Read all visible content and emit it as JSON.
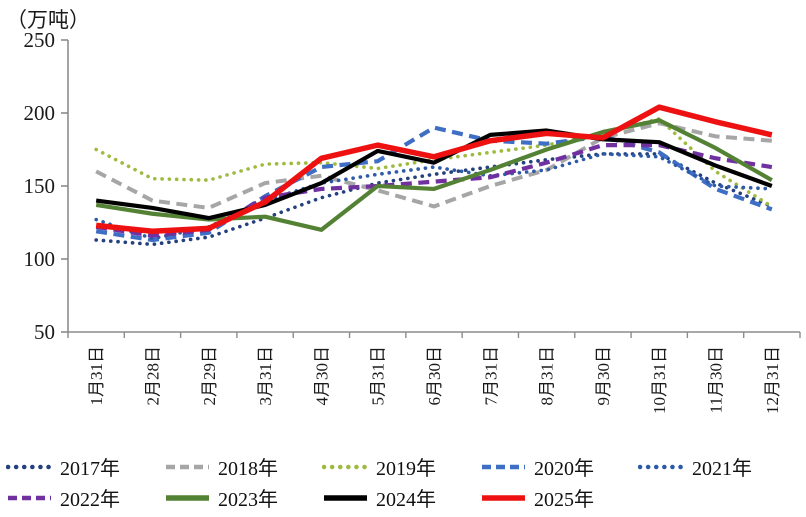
{
  "chart_data": {
    "type": "line",
    "title": "",
    "unit_label": "（万吨）",
    "xlabel": "",
    "ylabel": "万吨",
    "ylim": [
      50,
      250
    ],
    "yticks": [
      250,
      200,
      150,
      100,
      50
    ],
    "grid": false,
    "legend_position": "bottom",
    "axis_color": "#8c8c8c",
    "categories": [
      "1月31日",
      "2月28日",
      "2月29日",
      "3月31日",
      "4月30日",
      "5月31日",
      "6月30日",
      "7月31日",
      "8月31日",
      "9月30日",
      "10月31日",
      "11月30日",
      "12月31日"
    ],
    "series": [
      {
        "name": "2017年",
        "color": "#24417E",
        "line_style": "dotted",
        "width": 3.6,
        "values": [
          113,
          110,
          115,
          128,
          142,
          152,
          158,
          163,
          168,
          172,
          172,
          152,
          136
        ]
      },
      {
        "name": "2018年",
        "color": "#A6A6A6",
        "line_style": "dashed",
        "width": 4,
        "values": [
          160,
          140,
          135,
          152,
          157,
          147,
          136,
          150,
          161,
          183,
          193,
          184,
          181
        ]
      },
      {
        "name": "2019年",
        "color": "#9EBB3F",
        "line_style": "dotted",
        "width": 3.6,
        "values": [
          175,
          155,
          154,
          165,
          166,
          162,
          168,
          173,
          178,
          186,
          196,
          160,
          136
        ]
      },
      {
        "name": "2020年",
        "color": "#3F6FC4",
        "line_style": "dashed",
        "width": 4.2,
        "values": [
          119,
          113,
          118,
          143,
          163,
          167,
          190,
          181,
          179,
          184,
          173,
          148,
          134
        ]
      },
      {
        "name": "2021年",
        "color": "#2D5BA8",
        "line_style": "dotted",
        "width": 3.6,
        "values": [
          127,
          114,
          122,
          140,
          152,
          158,
          163,
          157,
          161,
          172,
          170,
          150,
          148
        ]
      },
      {
        "name": "2022年",
        "color": "#7030A0",
        "line_style": "dashed",
        "width": 4.2,
        "values": [
          122,
          116,
          120,
          142,
          148,
          150,
          153,
          156,
          166,
          178,
          178,
          169,
          163
        ]
      },
      {
        "name": "2023年",
        "color": "#548235",
        "line_style": "solid",
        "width": 4.2,
        "values": [
          137,
          131,
          127,
          129,
          120,
          150,
          148,
          161,
          175,
          187,
          195,
          176,
          154
        ]
      },
      {
        "name": "2024年",
        "color": "#000000",
        "line_style": "solid",
        "width": 4.2,
        "values": [
          140,
          135,
          128,
          137,
          152,
          174,
          166,
          185,
          188,
          182,
          180,
          164,
          150
        ]
      },
      {
        "name": "2025年",
        "color": "#EE1111",
        "line_style": "solid",
        "width": 5.5,
        "values": [
          123,
          119,
          121,
          139,
          169,
          178,
          170,
          181,
          186,
          183,
          204,
          194,
          185
        ]
      }
    ]
  }
}
